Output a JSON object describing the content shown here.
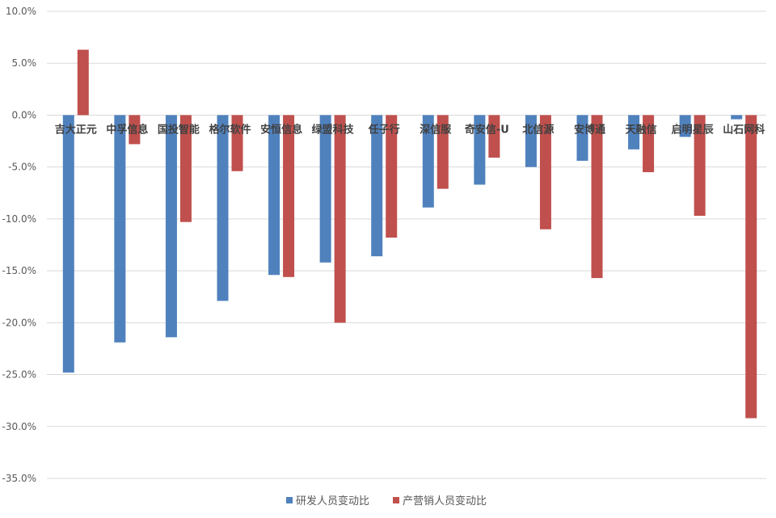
{
  "chart_data": {
    "type": "bar",
    "categories": [
      "吉大正元",
      "中孚信息",
      "国投智能",
      "格尔软件",
      "安恒信息",
      "绿盟科技",
      "任子行",
      "深信服",
      "奇安信-U",
      "北信源",
      "安博通",
      "天融信",
      "启明星辰",
      "山石网科"
    ],
    "series": [
      {
        "name": "研发人员变动比",
        "color": "#4f81bd",
        "values": [
          -24.8,
          -21.9,
          -21.4,
          -17.9,
          -15.4,
          -14.2,
          -13.6,
          -8.9,
          -6.7,
          -5.0,
          -4.4,
          -3.3,
          -2.1,
          -0.4
        ]
      },
      {
        "name": "产营销人员变动比",
        "color": "#c0504d",
        "values": [
          6.3,
          -2.8,
          -10.3,
          -5.4,
          -15.6,
          -20.0,
          -11.8,
          -7.1,
          -4.1,
          -11.0,
          -15.7,
          -5.5,
          -9.7,
          -29.2
        ]
      }
    ],
    "ylim": [
      -35,
      10
    ],
    "yticks": [
      "10.0%",
      "5.0%",
      "0.0%",
      "-5.0%",
      "-10.0%",
      "-15.0%",
      "-20.0%",
      "-25.0%",
      "-30.0%",
      "-35.0%"
    ],
    "ytick_values": [
      10,
      5,
      0,
      -5,
      -10,
      -15,
      -20,
      -25,
      -30,
      -35
    ],
    "grid": true,
    "legend_position": "bottom"
  }
}
